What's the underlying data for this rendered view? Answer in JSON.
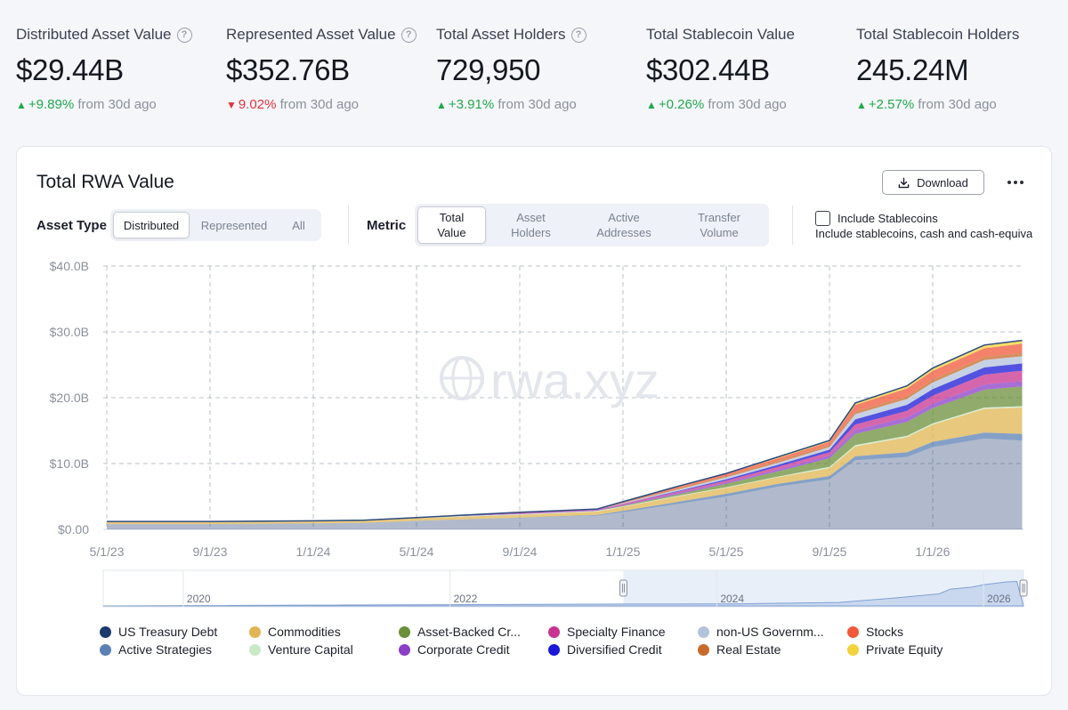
{
  "stats": [
    {
      "title": "Distributed Asset Value",
      "has_help": true,
      "value": "$29.44B",
      "change": "+9.89%",
      "direction": "up",
      "since": "from 30d ago"
    },
    {
      "title": "Represented Asset Value",
      "has_help": true,
      "value": "$352.76B",
      "change": "9.02%",
      "direction": "down",
      "since": "from 30d ago"
    },
    {
      "title": "Total Asset Holders",
      "has_help": true,
      "value": "729,950",
      "change": "+3.91%",
      "direction": "up",
      "since": "from 30d ago"
    },
    {
      "title": "Total Stablecoin Value",
      "has_help": false,
      "value": "$302.44B",
      "change": "+0.26%",
      "direction": "up",
      "since": "from 30d ago"
    },
    {
      "title": "Total Stablecoin Holders",
      "has_help": false,
      "value": "245.24M",
      "change": "+2.57%",
      "direction": "up",
      "since": "from 30d ago"
    }
  ],
  "icons": {
    "help": "help-circle-icon",
    "download": "download-icon",
    "more": "more-horizontal-icon",
    "up": "triangle-up-icon",
    "down": "triangle-down-icon",
    "up_glyph": "▲",
    "down_glyph": "▼",
    "help_glyph": "?"
  },
  "colors": {
    "up": "#20a84b",
    "down": "#e0323c"
  },
  "panel": {
    "title": "Total RWA Value",
    "download_label": "Download",
    "asset_type_label": "Asset Type",
    "asset_type_options": [
      "Distributed",
      "Represented",
      "All"
    ],
    "asset_type_selected": "Distributed",
    "metric_label": "Metric",
    "metric_options": [
      "Total Value",
      "Asset Holders",
      "Active Addresses",
      "Transfer Volume"
    ],
    "metric_selected": "Total Value",
    "include_stablecoins_label": "Include Stablecoins",
    "include_stablecoins_checked": false,
    "include_stablecoins_desc": "Include stablecoins, cash and cash-equivalents"
  },
  "chart_data": {
    "type": "area",
    "stacked": true,
    "watermark": "rwa.xyz",
    "y_ticks": [
      "$40.0B",
      "$30.0B",
      "$20.0B",
      "$10.0B",
      "$0.00"
    ],
    "ylim": [
      0,
      40
    ],
    "y_unit": "$B",
    "x_ticks": [
      "5/1/23",
      "9/1/23",
      "1/1/24",
      "5/1/24",
      "9/1/24",
      "1/1/25",
      "5/1/25",
      "9/1/25",
      "1/1/26"
    ],
    "x": [
      "5/1/23",
      "9/1/23",
      "1/1/24",
      "3/1/24",
      "5/1/24",
      "9/1/24",
      "12/1/24",
      "1/1/25",
      "3/1/25",
      "5/1/25",
      "7/1/25",
      "9/1/25",
      "10/1/25",
      "12/1/25",
      "1/1/26",
      "3/1/26",
      "4/15/26"
    ],
    "grid": true,
    "legend_position": "bottom",
    "series": [
      {
        "name": "US Treasury Debt",
        "color": "#1d3a6e",
        "values": [
          0.8,
          0.8,
          0.9,
          1.0,
          1.3,
          1.8,
          2.1,
          2.6,
          3.8,
          5.0,
          6.5,
          7.6,
          10.5,
          11.0,
          12.5,
          13.8,
          13.5
        ]
      },
      {
        "name": "Active Strategies",
        "color": "#5b80b4",
        "values": [
          0,
          0,
          0,
          0,
          0,
          0,
          0.1,
          0.2,
          0.3,
          0.4,
          0.4,
          0.5,
          0.6,
          0.7,
          0.8,
          0.9,
          1.0
        ]
      },
      {
        "name": "Commodities",
        "color": "#e0b552",
        "values": [
          0.3,
          0.3,
          0.3,
          0.3,
          0.4,
          0.4,
          0.5,
          0.6,
          0.8,
          0.9,
          1.0,
          1.2,
          1.5,
          2.3,
          2.6,
          3.6,
          4.0
        ]
      },
      {
        "name": "Venture Capital",
        "color": "#c9e9c7",
        "values": [
          0.1,
          0.1,
          0.1,
          0.1,
          0.1,
          0.1,
          0.1,
          0.1,
          0.1,
          0.1,
          0.1,
          0.2,
          0.2,
          0.2,
          0.2,
          0.2,
          0.2
        ]
      },
      {
        "name": "Asset-Backed Credit",
        "color": "#6b8f3a",
        "values": [
          0,
          0,
          0,
          0,
          0,
          0,
          0,
          0.1,
          0.2,
          0.5,
          0.8,
          1.3,
          1.7,
          2.1,
          2.3,
          2.7,
          3.0
        ]
      },
      {
        "name": "Corporate Credit",
        "color": "#8b3ec7",
        "values": [
          0,
          0,
          0,
          0,
          0,
          0.1,
          0.1,
          0.1,
          0.2,
          0.2,
          0.3,
          0.4,
          0.6,
          0.7,
          0.7,
          0.8,
          0.8
        ]
      },
      {
        "name": "Specialty Finance",
        "color": "#c8338f",
        "values": [
          0,
          0,
          0,
          0,
          0,
          0.1,
          0.1,
          0.2,
          0.2,
          0.3,
          0.4,
          0.5,
          0.8,
          1.0,
          1.2,
          1.5,
          1.6
        ]
      },
      {
        "name": "Diversified Credit",
        "color": "#1a18d6",
        "values": [
          0,
          0,
          0,
          0,
          0,
          0,
          0,
          0,
          0.1,
          0.2,
          0.3,
          0.4,
          0.8,
          0.9,
          1.0,
          1.1,
          1.1
        ]
      },
      {
        "name": "non-US Government Debt",
        "color": "#b3c3db",
        "values": [
          0,
          0,
          0,
          0,
          0,
          0,
          0,
          0.1,
          0.2,
          0.3,
          0.3,
          0.4,
          0.8,
          0.9,
          1.0,
          1.1,
          1.1
        ]
      },
      {
        "name": "Real Estate",
        "color": "#c86a2a",
        "values": [
          0,
          0,
          0,
          0,
          0,
          0.1,
          0.1,
          0.1,
          0.2,
          0.2,
          0.3,
          0.3,
          0.4,
          0.4,
          0.5,
          0.5,
          0.5
        ]
      },
      {
        "name": "Stocks",
        "color": "#f0583a",
        "values": [
          0,
          0,
          0,
          0,
          0,
          0,
          0,
          0.1,
          0.2,
          0.3,
          0.4,
          0.5,
          1.0,
          1.2,
          1.3,
          1.3,
          1.4
        ]
      },
      {
        "name": "Private Equity",
        "color": "#f2d33c",
        "values": [
          0,
          0,
          0,
          0,
          0,
          0,
          0,
          0,
          0.1,
          0.1,
          0.2,
          0.2,
          0.3,
          0.4,
          0.4,
          0.5,
          0.5
        ]
      }
    ],
    "legend": [
      "US Treasury Debt",
      "Commodities",
      "Asset-Backed Cr...",
      "Specialty Finance",
      "non-US Governm...",
      "Stocks",
      "Active Strategies",
      "Venture Capital",
      "Corporate Credit",
      "Diversified Credit",
      "Real Estate",
      "Private Equity"
    ],
    "navigator": {
      "years": [
        "2020",
        "2022",
        "2024",
        "2026"
      ],
      "range_start_year": 2023.3,
      "range_end_year": 2026.3,
      "min_year": 2019.4,
      "max_year": 2026.3
    }
  }
}
